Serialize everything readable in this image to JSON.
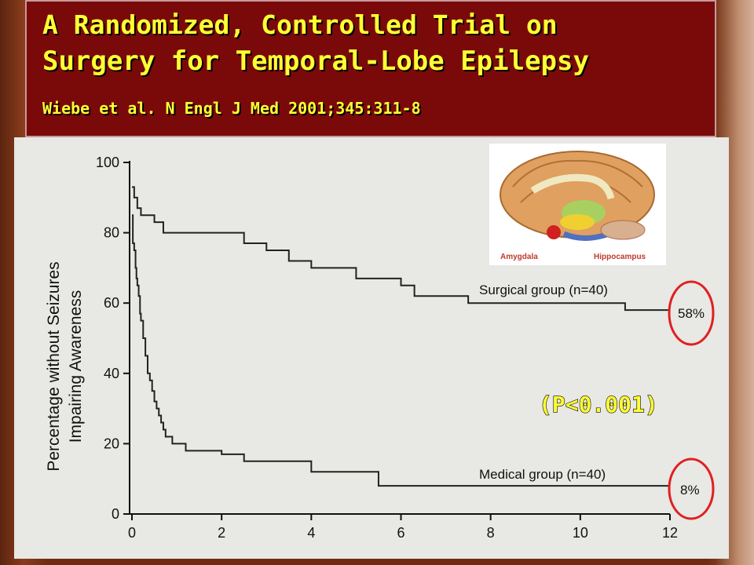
{
  "header": {
    "title_line1": "A Randomized, Controlled Trial on",
    "title_line2": "Surgery for Temporal-Lobe Epilepsy",
    "citation": "Wiebe et al. N Engl J Med  2001;345:311-8"
  },
  "colors": {
    "title_bg": "#7a0a0a",
    "title_text": "#ffff33",
    "circle": "#e02020"
  },
  "image": {
    "label_left": "Amygdala",
    "label_right": "Hippocampus"
  },
  "chart_data": {
    "type": "line",
    "step": true,
    "ylabel_line1": "Percentage without Seizures",
    "ylabel_line2": "Impairing Awareness",
    "xlim": [
      0,
      12
    ],
    "ylim": [
      0,
      100
    ],
    "xticks": [
      0,
      2,
      4,
      6,
      8,
      10,
      12
    ],
    "yticks": [
      0,
      20,
      40,
      60,
      80,
      100
    ],
    "series": [
      {
        "name": "Surgical group (n=40)",
        "end_label": "58%",
        "x": [
          0,
          0.05,
          0.12,
          0.2,
          0.5,
          0.7,
          1.2,
          2.5,
          2.8,
          3.0,
          3.5,
          4.0,
          4.3,
          5.0,
          5.5,
          6.0,
          6.3,
          7.0,
          7.5,
          10.2,
          11.0,
          12.0
        ],
        "y": [
          93,
          90,
          87,
          85,
          83,
          80,
          80,
          77,
          77,
          75,
          72,
          70,
          70,
          67,
          67,
          65,
          62,
          62,
          60,
          60,
          58,
          58
        ]
      },
      {
        "name": "Medical group (n=40)",
        "end_label": "8%",
        "x": [
          0,
          0.02,
          0.05,
          0.08,
          0.1,
          0.12,
          0.15,
          0.18,
          0.2,
          0.25,
          0.3,
          0.35,
          0.4,
          0.45,
          0.5,
          0.55,
          0.6,
          0.65,
          0.7,
          0.75,
          0.8,
          0.9,
          1.0,
          1.2,
          2.0,
          2.5,
          3.0,
          4.0,
          4.2,
          5.5,
          12.0
        ],
        "y": [
          85,
          77,
          75,
          70,
          67,
          65,
          62,
          57,
          55,
          50,
          45,
          40,
          38,
          35,
          32,
          30,
          28,
          26,
          24,
          22,
          22,
          20,
          20,
          18,
          17,
          15,
          15,
          12,
          12,
          8,
          8
        ]
      }
    ],
    "annotation": "(P<0.001)"
  }
}
